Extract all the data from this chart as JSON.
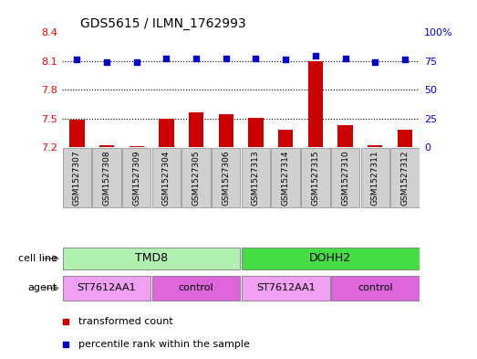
{
  "title": "GDS5615 / ILMN_1762993",
  "samples": [
    "GSM1527307",
    "GSM1527308",
    "GSM1527309",
    "GSM1527304",
    "GSM1527305",
    "GSM1527306",
    "GSM1527313",
    "GSM1527314",
    "GSM1527315",
    "GSM1527310",
    "GSM1527311",
    "GSM1527312"
  ],
  "bar_values": [
    7.49,
    7.22,
    7.21,
    7.5,
    7.56,
    7.54,
    7.51,
    7.38,
    8.1,
    7.43,
    7.22,
    7.38
  ],
  "dot_values": [
    76.5,
    74.0,
    74.0,
    77.0,
    77.0,
    77.0,
    77.0,
    76.5,
    80.0,
    77.0,
    74.0,
    76.5
  ],
  "ylim_left": [
    7.2,
    8.4
  ],
  "ylim_right": [
    0,
    100
  ],
  "yticks_left": [
    7.2,
    7.5,
    7.8,
    8.1,
    8.4
  ],
  "yticks_right": [
    0,
    25,
    50,
    75,
    100
  ],
  "ytick_labels_right": [
    "0",
    "25",
    "50",
    "75",
    "100%"
  ],
  "bar_color": "#cc0000",
  "dot_color": "#0000cc",
  "bar_baseline": 7.2,
  "cell_line_groups": [
    {
      "label": "TMD8",
      "start": 0,
      "end": 5,
      "color": "#b0f0b0"
    },
    {
      "label": "DOHH2",
      "start": 6,
      "end": 11,
      "color": "#44dd44"
    }
  ],
  "agent_groups": [
    {
      "label": "ST7612AA1",
      "start": 0,
      "end": 2,
      "color": "#f0a0f0"
    },
    {
      "label": "control",
      "start": 3,
      "end": 5,
      "color": "#dd66dd"
    },
    {
      "label": "ST7612AA1",
      "start": 6,
      "end": 8,
      "color": "#f0a0f0"
    },
    {
      "label": "control",
      "start": 9,
      "end": 11,
      "color": "#dd66dd"
    }
  ],
  "legend_bar_label": "transformed count",
  "legend_dot_label": "percentile rank within the sample",
  "cell_line_label": "cell line",
  "agent_label": "agent",
  "grid_dotted_values": [
    7.5,
    7.8,
    8.1
  ],
  "xlabel_box_color": "#d0d0d0",
  "background_color": "#ffffff"
}
